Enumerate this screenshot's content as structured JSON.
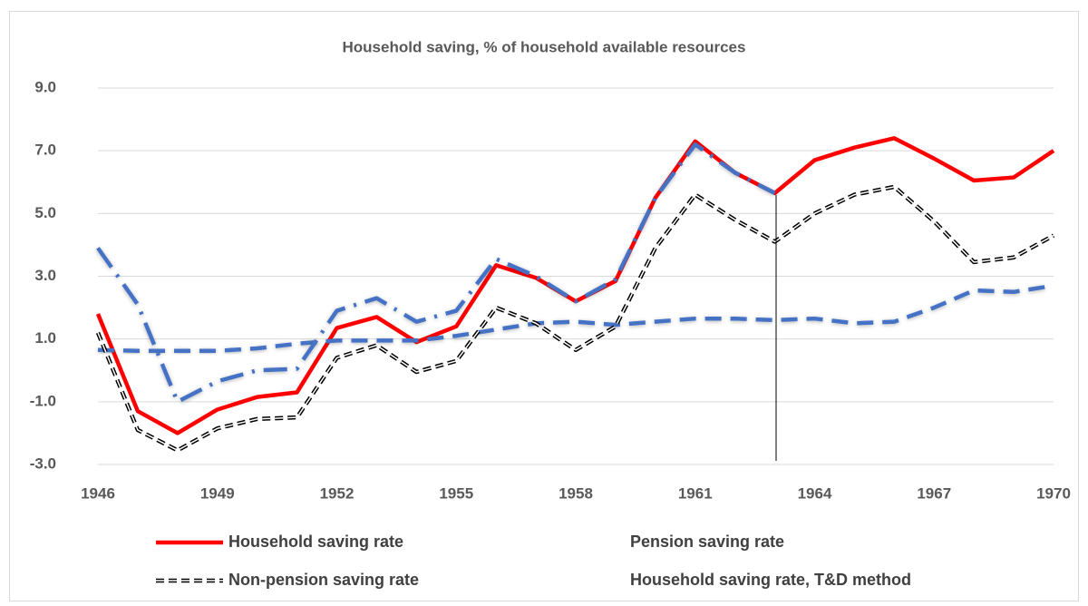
{
  "chart_data": {
    "type": "line",
    "title": "Household saving, % of household available resources",
    "x": [
      1946,
      1947,
      1948,
      1949,
      1950,
      1951,
      1952,
      1953,
      1954,
      1955,
      1956,
      1957,
      1958,
      1959,
      1960,
      1961,
      1962,
      1963,
      1964,
      1965,
      1966,
      1967,
      1968,
      1969,
      1970
    ],
    "xlim": [
      1946,
      1970
    ],
    "xticks": [
      1946,
      1949,
      1952,
      1955,
      1958,
      1961,
      1964,
      1967,
      1970
    ],
    "ylim": [
      -3,
      9
    ],
    "yticks": [
      {
        "value": -3,
        "label": "-3.0"
      },
      {
        "value": -1,
        "label": "-1.0"
      },
      {
        "value": 1,
        "label": "1.0"
      },
      {
        "value": 3,
        "label": "3.0"
      },
      {
        "value": 5,
        "label": "5.0"
      },
      {
        "value": 7,
        "label": "7.0"
      },
      {
        "value": 9,
        "label": "9.0"
      }
    ],
    "grid": true,
    "series": [
      {
        "name": "Household saving rate",
        "color": "#ff0000",
        "style": "solid",
        "values": [
          1.8,
          -1.3,
          -2.0,
          -1.25,
          -0.85,
          -0.7,
          1.35,
          1.7,
          0.9,
          1.4,
          3.35,
          2.95,
          2.2,
          2.85,
          5.5,
          7.3,
          6.3,
          5.65,
          6.7,
          7.1,
          7.4,
          6.75,
          6.05,
          6.15,
          7.0
        ]
      },
      {
        "name": "Pension saving rate",
        "color": "#4472c4",
        "style": "dashed",
        "values": [
          0.65,
          0.62,
          0.62,
          0.62,
          0.7,
          0.85,
          0.95,
          0.95,
          0.95,
          1.1,
          1.3,
          1.5,
          1.55,
          1.45,
          1.55,
          1.65,
          1.65,
          1.6,
          1.65,
          1.5,
          1.55,
          2.0,
          2.55,
          2.5,
          2.7
        ]
      },
      {
        "name": "Non-pension saving rate",
        "color": "#000000",
        "style": "double-dashed",
        "values": [
          1.2,
          -1.9,
          -2.55,
          -1.85,
          -1.55,
          -1.5,
          0.4,
          0.8,
          -0.05,
          0.3,
          2.0,
          1.5,
          0.65,
          1.4,
          3.9,
          5.6,
          4.8,
          4.1,
          5.0,
          5.6,
          5.85,
          4.75,
          3.45,
          3.6,
          4.3
        ]
      },
      {
        "name": "Household saving rate, T&D method",
        "color": "#4472c4",
        "style": "dash-dot",
        "values": [
          3.9,
          2.1,
          -1.0,
          -0.35,
          0.0,
          0.05,
          1.9,
          2.3,
          1.55,
          1.9,
          3.55,
          3.0,
          2.2,
          2.9,
          5.5,
          7.2,
          6.3,
          5.65,
          null,
          null,
          null,
          null,
          null,
          null,
          null
        ]
      }
    ]
  }
}
